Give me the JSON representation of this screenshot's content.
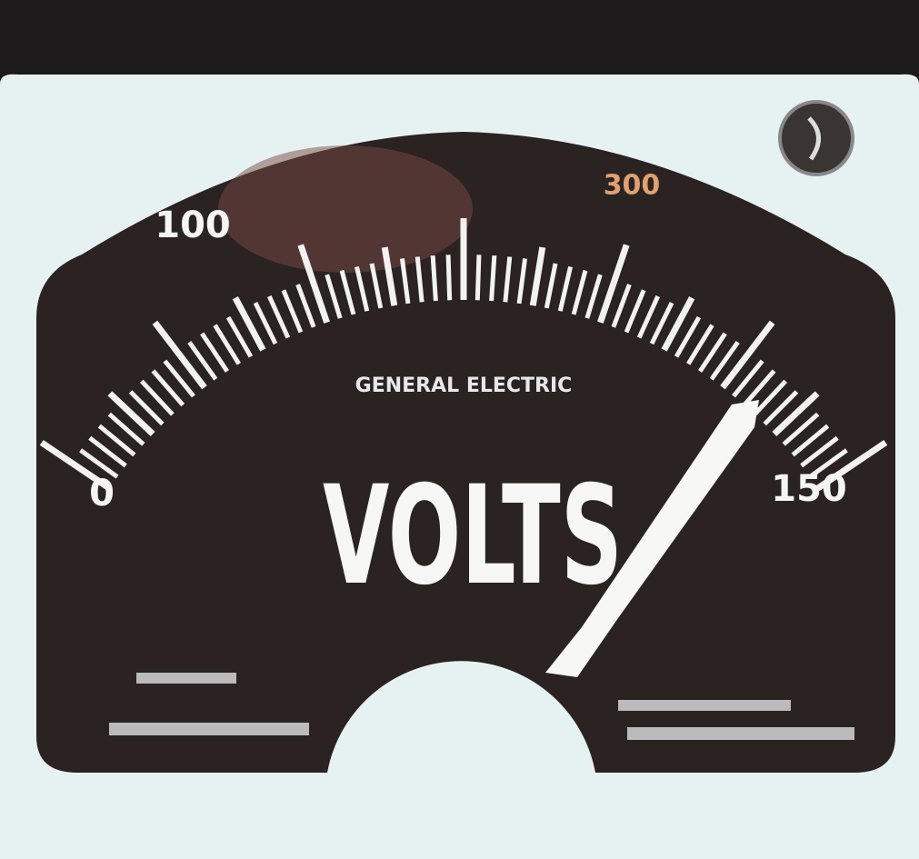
{
  "brand": "GENERAL ELECTRIC",
  "unit": "VOLTS",
  "scale_labels": [
    "0",
    "100",
    "300",
    "150"
  ]
}
